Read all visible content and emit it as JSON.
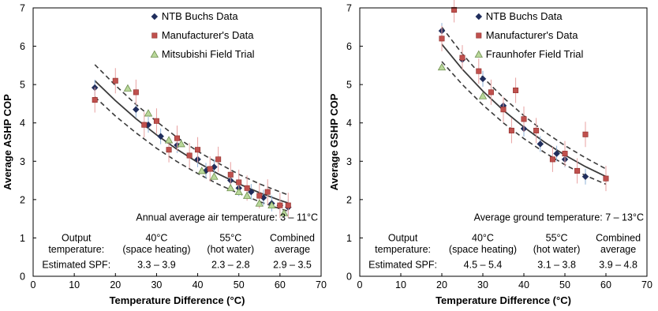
{
  "colors": {
    "ntb": "#1f2d5c",
    "manufacturer": "#c0504d",
    "manufacturer_err": "#e8a0a0",
    "ntb_err": "#8fb3d9",
    "field": "#b9d89a",
    "field_stroke": "#6f8f4f",
    "fit": "#3a3a3a",
    "axis": "#000000"
  },
  "chart_data": [
    {
      "type": "scatter",
      "xlabel": "Temperature Difference (°C)",
      "ylabel": "Average ASHP COP",
      "xlim": [
        0,
        70
      ],
      "ylim": [
        0,
        7
      ],
      "xticks": [
        "0",
        "10",
        "20",
        "30",
        "40",
        "50",
        "60",
        "70"
      ],
      "yticks": [
        "0",
        "1",
        "2",
        "3",
        "4",
        "5",
        "6",
        "7"
      ],
      "legend_position": "top-right",
      "legend": [
        "NTB Buchs Data",
        "Manufacturer's Data",
        "Mitsubishi Field Trial"
      ],
      "series": [
        {
          "name": "NTB Buchs Data",
          "marker": "diamond",
          "x": [
            15,
            25,
            28,
            31,
            35,
            40,
            42,
            44,
            48,
            50,
            53,
            56,
            58,
            60,
            62
          ],
          "y": [
            4.92,
            4.35,
            3.95,
            3.65,
            3.42,
            3.05,
            2.75,
            2.85,
            2.5,
            2.3,
            2.2,
            2.05,
            1.9,
            1.85,
            1.8
          ]
        },
        {
          "name": "Manufacturer's Data",
          "marker": "square",
          "x": [
            15,
            20,
            25,
            27,
            30,
            33,
            35,
            38,
            40,
            43,
            45,
            48,
            50,
            52,
            55,
            57,
            60,
            62
          ],
          "y": [
            4.6,
            5.1,
            4.8,
            3.95,
            4.05,
            3.3,
            3.6,
            3.15,
            3.3,
            2.8,
            3.05,
            2.65,
            2.45,
            2.3,
            2.1,
            2.2,
            1.85,
            1.85
          ]
        },
        {
          "name": "Mitsubishi Field Trial",
          "marker": "triangle",
          "x": [
            23,
            28,
            33,
            36,
            41,
            44,
            48,
            50,
            52,
            55,
            58,
            61
          ],
          "y": [
            4.9,
            4.25,
            3.55,
            3.45,
            2.75,
            2.6,
            2.3,
            2.2,
            2.1,
            1.9,
            1.85,
            1.65
          ]
        }
      ],
      "fit": {
        "x": [
          15,
          20,
          25,
          30,
          35,
          40,
          45,
          50,
          55,
          60,
          62
        ],
        "y": [
          5.1,
          4.58,
          4.11,
          3.69,
          3.31,
          2.97,
          2.67,
          2.41,
          2.18,
          1.98,
          1.91
        ]
      },
      "band_upper": {
        "x": [
          15,
          20,
          25,
          30,
          35,
          40,
          45,
          50,
          55,
          60,
          62
        ],
        "y": [
          5.52,
          4.98,
          4.48,
          4.04,
          3.62,
          3.26,
          2.95,
          2.66,
          2.41,
          2.2,
          2.12
        ]
      },
      "band_lower": {
        "x": [
          15,
          20,
          25,
          30,
          35,
          40,
          45,
          50,
          55,
          60,
          62
        ],
        "y": [
          4.68,
          4.18,
          3.74,
          3.34,
          2.99,
          2.68,
          2.4,
          2.16,
          1.95,
          1.76,
          1.7
        ]
      },
      "annotation": "Annual average air temperature:  3 – 11°C",
      "table": {
        "row1_label": [
          "Output",
          "temperature:"
        ],
        "row2_label": "Estimated SPF:",
        "columns": [
          {
            "x": 30,
            "header": [
              "40°C",
              "(space heating)"
            ],
            "spf": "3.3 – 3.9"
          },
          {
            "x": 48,
            "header": [
              "55°C",
              "(hot water)"
            ],
            "spf": "2.3 – 2.8"
          },
          {
            "x": 63,
            "header": [
              "Combined",
              "average"
            ],
            "spf": "2.9 – 3.5"
          }
        ]
      }
    },
    {
      "type": "scatter",
      "xlabel": "Temperature Difference (°C)",
      "ylabel": "Average GSHP COP",
      "xlim": [
        0,
        70
      ],
      "ylim": [
        0,
        7
      ],
      "xticks": [
        "0",
        "10",
        "20",
        "30",
        "40",
        "50",
        "60",
        "70"
      ],
      "yticks": [
        "0",
        "1",
        "2",
        "3",
        "4",
        "5",
        "6",
        "7"
      ],
      "legend_position": "top-right",
      "legend": [
        "NTB Buchs Data",
        "Manufacturer's Data",
        "Fraunhofer Field Trial"
      ],
      "series": [
        {
          "name": "NTB Buchs Data",
          "marker": "diamond",
          "x": [
            20,
            25,
            30,
            35,
            40,
            44,
            48,
            50,
            55
          ],
          "y": [
            6.4,
            5.65,
            5.15,
            4.45,
            3.85,
            3.45,
            3.2,
            3.05,
            2.6
          ]
        },
        {
          "name": "Manufacturer's Data",
          "marker": "square",
          "x": [
            20,
            23,
            25,
            29,
            32,
            35,
            37,
            38,
            40,
            43,
            47,
            50,
            53,
            55,
            60
          ],
          "y": [
            6.2,
            6.95,
            5.7,
            5.35,
            4.8,
            4.35,
            3.8,
            4.85,
            4.1,
            3.8,
            3.05,
            3.2,
            2.75,
            3.7,
            2.55
          ]
        },
        {
          "name": "Fraunhofer Field Trial",
          "marker": "triangle",
          "x": [
            20,
            30
          ],
          "y": [
            5.45,
            4.7
          ]
        }
      ],
      "fit": {
        "x": [
          20,
          25,
          30,
          35,
          40,
          45,
          50,
          55,
          60
        ],
        "y": [
          6.05,
          5.4,
          4.83,
          4.33,
          3.89,
          3.5,
          3.16,
          2.86,
          2.6
        ]
      },
      "band_upper": {
        "x": [
          20,
          25,
          30,
          35,
          40,
          45,
          50,
          55,
          60
        ],
        "y": [
          6.5,
          5.8,
          5.19,
          4.66,
          4.19,
          3.77,
          3.41,
          3.09,
          2.8
        ]
      },
      "band_lower": {
        "x": [
          20,
          25,
          30,
          35,
          40,
          45,
          50,
          55,
          60
        ],
        "y": [
          5.6,
          5.0,
          4.47,
          4.0,
          3.59,
          3.23,
          2.91,
          2.63,
          2.4
        ]
      },
      "annotation": "Average ground temperature:  7 – 13°C",
      "table": {
        "row1_label": [
          "Output",
          "temperature:"
        ],
        "row2_label": "Estimated SPF:",
        "columns": [
          {
            "x": 30,
            "header": [
              "40°C",
              "(space heating)"
            ],
            "spf": "4.5 – 5.4"
          },
          {
            "x": 48,
            "header": [
              "55°C",
              "(hot water)"
            ],
            "spf": "3.1 – 3.8"
          },
          {
            "x": 63,
            "header": [
              "Combined",
              "average"
            ],
            "spf": "3.9 – 4.8"
          }
        ]
      }
    }
  ]
}
